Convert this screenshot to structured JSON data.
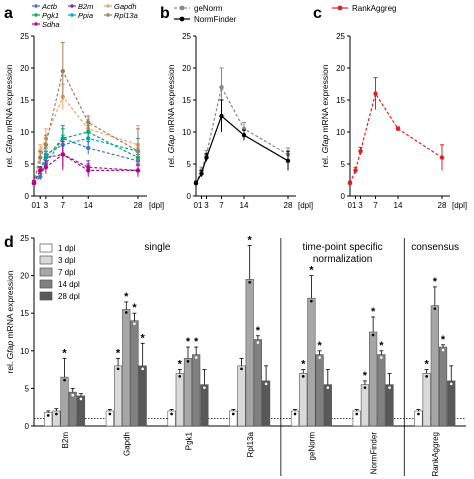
{
  "panels": {
    "a": "a",
    "b": "b",
    "c": "c",
    "d": "d"
  },
  "y_axis_label_prefix": "rel. ",
  "y_axis_label_gene": "Gfap",
  "y_axis_label_suffix": " mRNA expression",
  "x_ticks": [
    "01",
    "3",
    "7",
    "14",
    "28"
  ],
  "x_unit": "[dpl]",
  "y_ticks": [
    "0",
    "5",
    "10",
    "15",
    "20",
    "25"
  ],
  "chart_data": [
    {
      "type": "line",
      "panel": "a",
      "x": [
        0,
        1,
        3,
        7,
        14,
        28
      ],
      "ylim": [
        0,
        25
      ],
      "series": [
        {
          "name": "Actb",
          "color": "#4472c4",
          "values": [
            2,
            3,
            5,
            9,
            7.5,
            5.5
          ],
          "errors": [
            0.4,
            0.5,
            1,
            2,
            1,
            1
          ]
        },
        {
          "name": "B2m",
          "color": "#7030a0",
          "values": [
            2,
            4,
            6,
            6.5,
            4.5,
            4
          ],
          "errors": [
            0.4,
            0.6,
            1,
            2.5,
            1,
            0.8
          ]
        },
        {
          "name": "Gapdh",
          "color": "#f4a460",
          "values": [
            2,
            7,
            9,
            15.5,
            10.5,
            8
          ],
          "errors": [
            0.4,
            1,
            1.5,
            2,
            1.5,
            3
          ]
        },
        {
          "name": "Pgk1",
          "color": "#00b050",
          "values": [
            2,
            4,
            6,
            9,
            10,
            6
          ],
          "errors": [
            0.4,
            0.5,
            1,
            1.5,
            1,
            1.5
          ]
        },
        {
          "name": "Ppia",
          "color": "#00a0c8",
          "values": [
            2,
            4,
            6.5,
            8,
            9,
            7
          ],
          "errors": [
            0.4,
            0.5,
            1,
            1.5,
            1,
            2
          ]
        },
        {
          "name": "Rpl13a",
          "color": "#9e7f5b",
          "values": [
            2,
            6,
            8,
            19.5,
            11.5,
            7
          ],
          "errors": [
            0.4,
            1,
            1.5,
            4.5,
            1,
            3.5
          ]
        },
        {
          "name": "Sdha",
          "color": "#c00080",
          "values": [
            2,
            4,
            4.5,
            6.5,
            4,
            4
          ],
          "errors": [
            0.4,
            0.5,
            1,
            2,
            1,
            1
          ]
        }
      ]
    },
    {
      "type": "line",
      "panel": "b",
      "x": [
        0,
        1,
        3,
        7,
        14,
        28
      ],
      "ylim": [
        0,
        25
      ],
      "series": [
        {
          "name": "geNorm",
          "color": "#888888",
          "dashed": true,
          "values": [
            2,
            4,
            6.5,
            17,
            10.5,
            6.5
          ],
          "errors": [
            0.3,
            0.5,
            0.6,
            3,
            1,
            1
          ]
        },
        {
          "name": "NormFinder",
          "color": "#000000",
          "dashed": false,
          "values": [
            2,
            3.5,
            6,
            12.5,
            9.5,
            5.5
          ],
          "errors": [
            0.3,
            0.5,
            0.6,
            2.5,
            0.8,
            1.5
          ]
        }
      ]
    },
    {
      "type": "line",
      "panel": "c",
      "x": [
        0,
        1,
        3,
        7,
        14,
        28
      ],
      "ylim": [
        0,
        25
      ],
      "series": [
        {
          "name": "RankAggreg",
          "color": "#e02020",
          "values": [
            2,
            4,
            7,
            16,
            10.5,
            6
          ],
          "errors": [
            0.3,
            0.5,
            0.6,
            2.5,
            0.3,
            2
          ]
        }
      ]
    },
    {
      "type": "bar",
      "panel": "d",
      "ylim": [
        0,
        25
      ],
      "categories": [
        "B2m",
        "Gapdh",
        "Pgk1",
        "Rpl13a",
        "geNorm",
        "NormFinder",
        "RankAggreg"
      ],
      "groups": [
        {
          "label": "single",
          "from": 0,
          "to": 3
        },
        {
          "label": "time-point specific",
          "label2": "normalization",
          "from": 4,
          "to": 5
        },
        {
          "label": "consensus",
          "from": 6,
          "to": 6
        }
      ],
      "series": [
        {
          "name": "1 dpl",
          "color": "#ffffff",
          "values": [
            1.8,
            2.0,
            2.0,
            2.0,
            2.0,
            2.0,
            2.0
          ],
          "errors": [
            0.2,
            0.2,
            0.2,
            0.2,
            0.2,
            0.2,
            0.2
          ]
        },
        {
          "name": "3 dpl",
          "color": "#d9d9d9",
          "values": [
            2.0,
            8.0,
            7.0,
            8.0,
            7.0,
            5.5,
            7.0
          ],
          "errors": [
            0.3,
            1,
            0.5,
            1,
            0.5,
            0.5,
            0.5
          ]
        },
        {
          "name": "7 dpl",
          "color": "#a6a6a6",
          "values": [
            6.5,
            15.5,
            9.0,
            19.5,
            17.0,
            12.5,
            16.0
          ],
          "errors": [
            2.5,
            1,
            1.5,
            4.5,
            3,
            2,
            2.5
          ]
        },
        {
          "name": "14 dpl",
          "color": "#808080",
          "values": [
            4.5,
            14.0,
            9.5,
            11.5,
            9.5,
            9.5,
            10.5
          ],
          "errors": [
            0.5,
            1,
            1,
            0.5,
            0.5,
            0.5,
            0.3
          ]
        },
        {
          "name": "28 dpl",
          "color": "#595959",
          "values": [
            4.0,
            8.0,
            5.5,
            6.0,
            5.5,
            5.5,
            6.0
          ],
          "errors": [
            0.3,
            3,
            2,
            2,
            2,
            1.5,
            2
          ]
        }
      ],
      "stars": [
        [
          false,
          false,
          true,
          false,
          false
        ],
        [
          false,
          true,
          true,
          true,
          true
        ],
        [
          false,
          true,
          true,
          true,
          false
        ],
        [
          false,
          false,
          true,
          true,
          false
        ],
        [
          false,
          true,
          true,
          true,
          false
        ],
        [
          false,
          true,
          true,
          true,
          false
        ],
        [
          false,
          true,
          true,
          true,
          false
        ]
      ],
      "star_glyph": "*"
    }
  ]
}
